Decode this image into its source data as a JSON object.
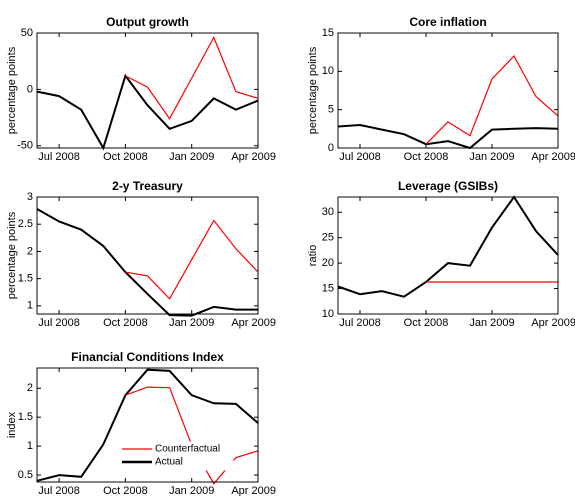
{
  "chart_data": [
    {
      "type": "line",
      "title": "Output growth",
      "y_label": "percentage points",
      "categories": [
        null,
        "Jul 2008",
        null,
        null,
        "Oct 2008",
        null,
        null,
        "Jan 2009",
        null,
        null,
        "Apr 2009"
      ],
      "series": [
        {
          "color": "#000000",
          "values": [
            -2,
            -6,
            -18,
            -52,
            12,
            -14,
            -35,
            -28,
            -8,
            -18,
            -10
          ]
        },
        {
          "color": "#ff0000",
          "values": [
            null,
            null,
            null,
            null,
            12,
            2,
            -26,
            10,
            46,
            -2,
            -8
          ]
        }
      ],
      "ylim": [
        -52,
        50
      ],
      "yticks": [
        -50,
        0,
        50
      ]
    },
    {
      "type": "line",
      "title": "Core inflation",
      "y_label": "percentage points",
      "categories": [
        null,
        "Jul 2008",
        null,
        null,
        "Oct 2008",
        null,
        null,
        "Jan 2009",
        null,
        null,
        "Apr 2009"
      ],
      "series": [
        {
          "color": "#000000",
          "values": [
            2.8,
            3.0,
            2.4,
            1.8,
            0.5,
            0.9,
            0,
            2.4,
            2.5,
            2.6,
            2.5
          ]
        },
        {
          "color": "#ff0000",
          "values": [
            null,
            null,
            null,
            null,
            0.5,
            3.4,
            1.6,
            9,
            12,
            6.7,
            4.2
          ]
        }
      ],
      "ylim": [
        0,
        15
      ],
      "yticks": [
        0,
        5,
        10,
        15
      ]
    },
    {
      "type": "line",
      "title": "2-y Treasury",
      "y_label": "percentage points",
      "categories": [
        null,
        "Jul 2008",
        null,
        null,
        "Oct 2008",
        null,
        null,
        "Jan 2009",
        null,
        null,
        "Apr 2009"
      ],
      "series": [
        {
          "color": "#000000",
          "values": [
            2.78,
            2.55,
            2.4,
            2.1,
            1.62,
            1.22,
            0.83,
            0.82,
            0.98,
            0.93,
            0.93
          ]
        },
        {
          "color": "#ff0000",
          "values": [
            null,
            null,
            null,
            null,
            1.62,
            1.55,
            1.13,
            1.85,
            2.57,
            2.05,
            1.62
          ]
        }
      ],
      "ylim": [
        0.85,
        3
      ],
      "yticks": [
        1,
        1.5,
        2,
        2.5,
        3
      ]
    },
    {
      "type": "line",
      "title": "Leverage (GSIBs)",
      "y_label": "ratio",
      "categories": [
        null,
        "Jul 2008",
        null,
        null,
        "Oct 2008",
        null,
        null,
        "Jan 2009",
        null,
        null,
        "Apr 2009"
      ],
      "series": [
        {
          "color": "#000000",
          "values": [
            15.4,
            13.9,
            14.5,
            13.4,
            16.3,
            20,
            19.5,
            27,
            33,
            26.3,
            21.6
          ]
        },
        {
          "color": "#ff0000",
          "values": [
            null,
            null,
            null,
            null,
            16.3,
            16.3,
            16.3,
            16.3,
            16.3,
            16.3,
            16.3
          ]
        }
      ],
      "ylim": [
        10,
        33
      ],
      "yticks": [
        10,
        15,
        20,
        25,
        30
      ]
    },
    {
      "type": "line",
      "title": "Financial Conditions Index",
      "y_label": "index",
      "categories": [
        null,
        "Jul 2008",
        null,
        null,
        "Oct 2008",
        null,
        null,
        "Jan 2009",
        null,
        null,
        "Apr 2009"
      ],
      "series": [
        {
          "name": "Actual",
          "color": "#000000",
          "values": [
            0.4,
            0.5,
            0.47,
            1.03,
            1.88,
            2.32,
            2.3,
            1.88,
            1.74,
            1.73,
            1.4
          ]
        },
        {
          "name": "Counterfactual",
          "color": "#ff0000",
          "values": [
            null,
            null,
            null,
            null,
            1.88,
            2.02,
            2.01,
            1.02,
            0.35,
            0.8,
            0.92
          ]
        }
      ],
      "ylim": [
        0.38,
        2.35
      ],
      "yticks": [
        0.5,
        1,
        1.5,
        2
      ],
      "legend": "lower center"
    }
  ]
}
